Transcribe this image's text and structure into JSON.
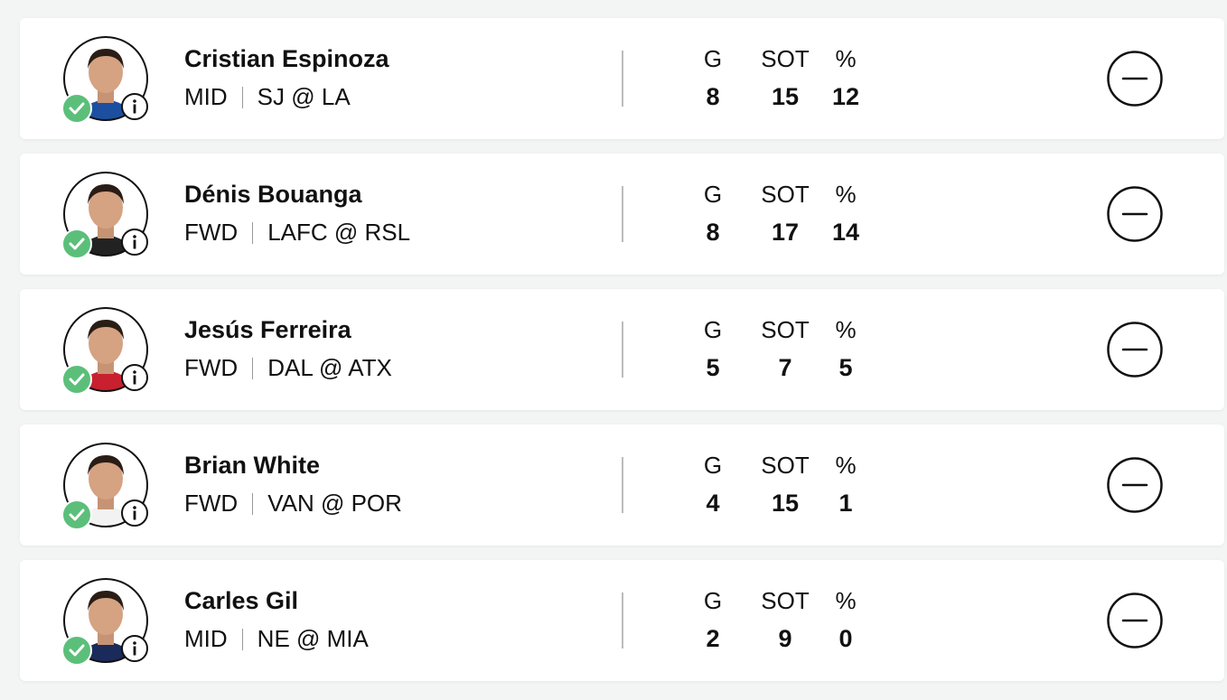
{
  "stat_labels": [
    "G",
    "SOT",
    "%"
  ],
  "players": [
    {
      "name": "Cristian Espinoza",
      "position": "MID",
      "matchup": "SJ @ LA",
      "stats": [
        8,
        15,
        12
      ]
    },
    {
      "name": "Dénis Bouanga",
      "position": "FWD",
      "matchup": "LAFC @ RSL",
      "stats": [
        8,
        17,
        14
      ]
    },
    {
      "name": "Jesús Ferreira",
      "position": "FWD",
      "matchup": "DAL @ ATX",
      "stats": [
        5,
        7,
        5
      ]
    },
    {
      "name": "Brian White",
      "position": "FWD",
      "matchup": "VAN @ POR",
      "stats": [
        4,
        15,
        1
      ]
    },
    {
      "name": "Carles Gil",
      "position": "MID",
      "matchup": "NE @ MIA",
      "stats": [
        2,
        9,
        0
      ]
    }
  ]
}
